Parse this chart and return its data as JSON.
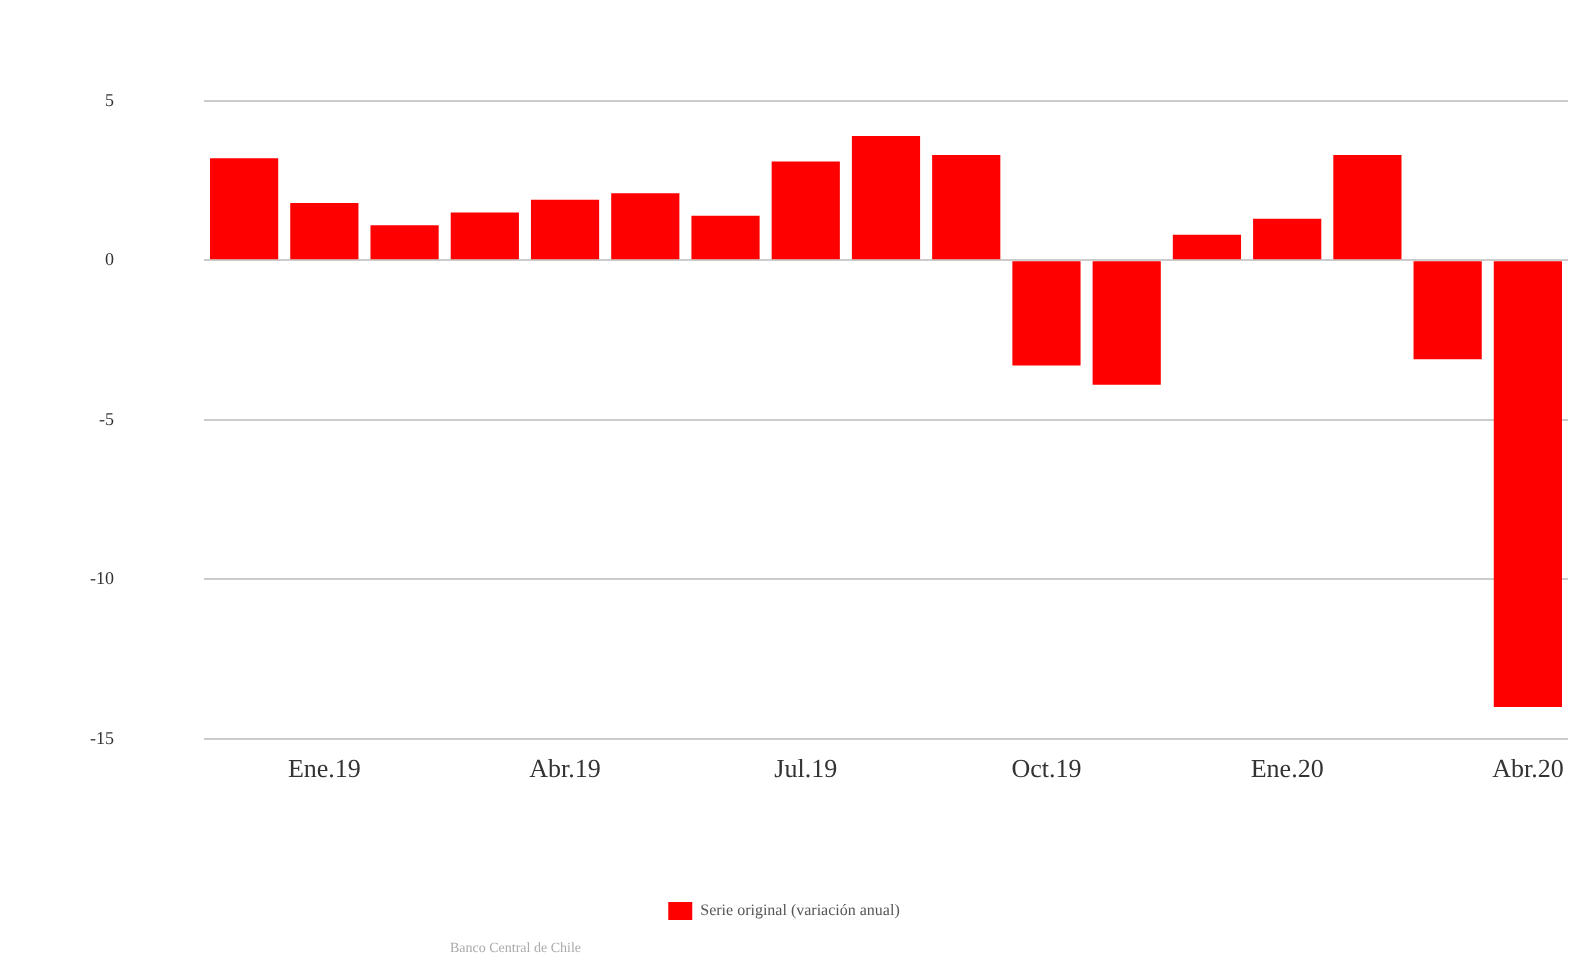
{
  "chart_data": {
    "type": "bar",
    "categories": [
      null,
      "Ene.19",
      null,
      null,
      "Abr.19",
      null,
      null,
      "Jul.19",
      null,
      null,
      "Oct.19",
      null,
      null,
      "Ene.20",
      null,
      null,
      "Abr.20"
    ],
    "series": [
      {
        "name": "Serie original (variación anual)",
        "color": "#ff0000",
        "values": [
          3.2,
          1.8,
          1.1,
          1.5,
          1.9,
          2.1,
          1.4,
          3.1,
          3.9,
          3.3,
          -3.3,
          -3.9,
          0.8,
          1.3,
          3.3,
          -3.1,
          -14.0
        ]
      }
    ],
    "ylim": [
      -15,
      5
    ],
    "yticks": [
      -15,
      -10,
      -5,
      0,
      5
    ],
    "grid": "y",
    "legend": "bottom",
    "annotations": [
      "Banco Central de Chile"
    ]
  }
}
